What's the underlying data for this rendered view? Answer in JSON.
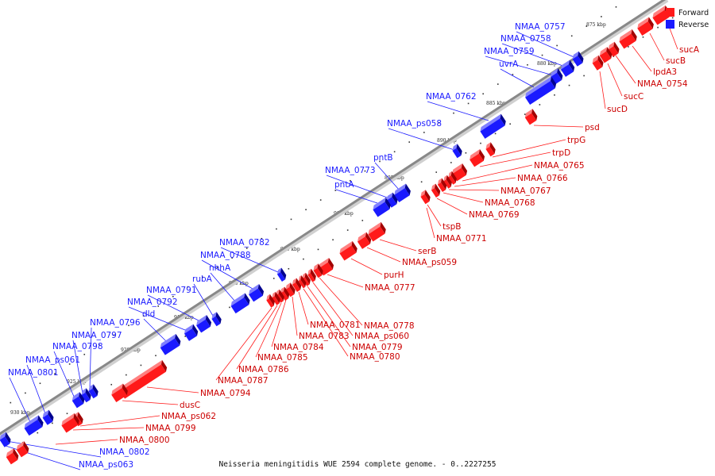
{
  "colors": {
    "forward": "#ff1a1a",
    "reverse": "#1a1aff",
    "backbone": "#888888"
  },
  "legend": {
    "forward": "Forward",
    "reverse": "Reverse"
  },
  "caption": "Neisseria meningitidis WUE 2594 complete genome. - 0..2227255",
  "scale_labels": [
    "875 kbp",
    "880 kbp",
    "885 kbp",
    "890 kbp",
    "895 kbp",
    "900 kbp",
    "905 kbp",
    "910 kbp",
    "915 kbp",
    "920 kbp",
    "925 kbp",
    "930 kbp"
  ],
  "reverse_genes": [
    "NMAA_0757",
    "NMAA_0758",
    "NMAA_0759",
    "uvrA",
    "NMAA_0762",
    "NMAA_ps058",
    "pntB",
    "NMAA_0773",
    "pntA",
    "NMAA_0782",
    "NMAA_0788",
    "nhhA",
    "rubA",
    "NMAA_0791",
    "NMAA_0792",
    "dld",
    "NMAA_0796",
    "NMAA_0797",
    "NMAA_0798",
    "NMAA_ps061",
    "NMAA_0801",
    "NMAA_0802",
    "NMAA_ps063"
  ],
  "forward_genes": [
    "sucA",
    "sucB",
    "lpdA3",
    "NMAA_0754",
    "sucC",
    "sucD",
    "psd",
    "trpG",
    "trpD",
    "NMAA_0765",
    "NMAA_0766",
    "NMAA_0767",
    "NMAA_0768",
    "NMAA_0769",
    "tspB",
    "NMAA_0771",
    "serB",
    "NMAA_ps059",
    "purH",
    "NMAA_0777",
    "NMAA_0778",
    "NMAA_ps060",
    "NMAA_0779",
    "NMAA_0780",
    "NMAA_0781",
    "NMAA_0783",
    "NMAA_0784",
    "NMAA_0785",
    "NMAA_0786",
    "NMAA_0787",
    "NMAA_0794",
    "dusC",
    "NMAA_ps062",
    "NMAA_0799",
    "NMAA_0800"
  ]
}
